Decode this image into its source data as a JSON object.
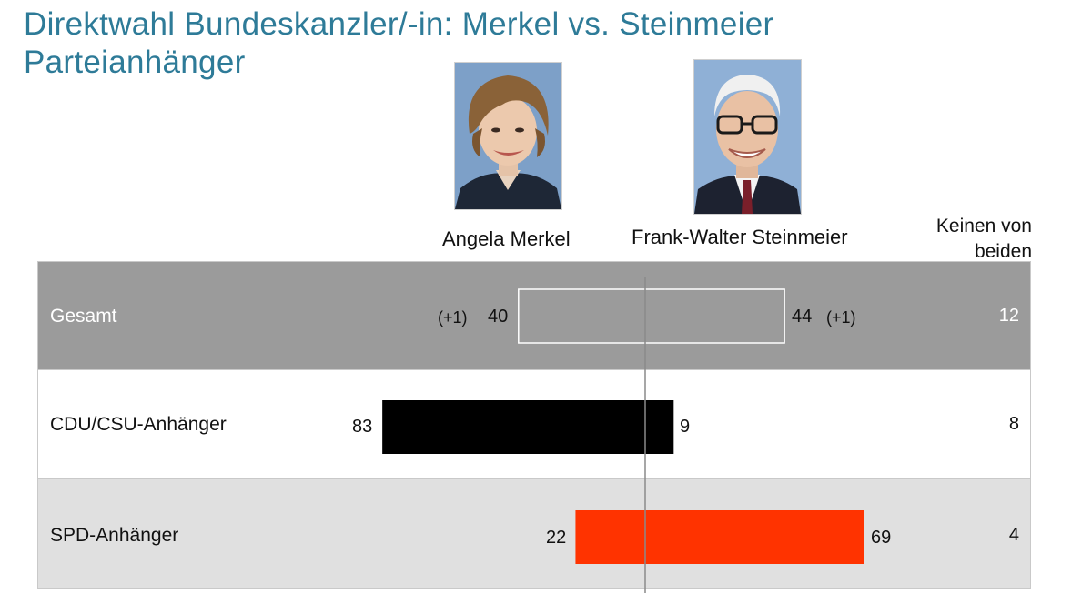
{
  "title_line1": "Direktwahl Bundeskanzler/-in: Merkel vs. Steinmeier",
  "title_line2": "Parteianhänger",
  "colors": {
    "title": "#2e7b98",
    "gesamt_bg": "#9b9b9b",
    "cdu_bar": "#000000",
    "spd_bar": "#ff3300",
    "spd_bg": "#e0e0e0"
  },
  "chart_data": {
    "type": "bar",
    "orientation": "horizontal-diverging",
    "columns": {
      "left": "Angela Merkel",
      "right": "Frank-Walter Steinmeier",
      "neither": "Keinen von beiden"
    },
    "neither_line1": "Keinen von",
    "neither_line2": "beiden",
    "rows": [
      {
        "label": "Gesamt",
        "merkel": 40,
        "steinmeier": 44,
        "neither": 12,
        "merkel_delta": "(+1)",
        "steinmeier_delta": "(+1)"
      },
      {
        "label": "CDU/CSU-Anhänger",
        "merkel": 83,
        "steinmeier": 9,
        "neither": 8
      },
      {
        "label": "SPD-Anhänger",
        "merkel": 22,
        "steinmeier": 69,
        "neither": 4
      }
    ]
  }
}
